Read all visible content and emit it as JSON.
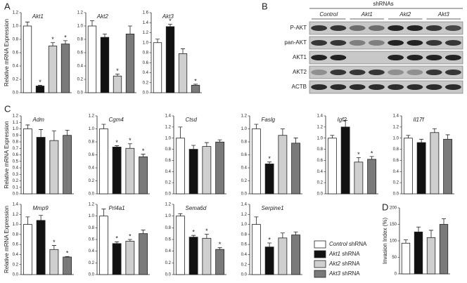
{
  "panels": [
    "A",
    "B",
    "C",
    "D"
  ],
  "blot": {
    "header": "shRNAs",
    "groups": [
      "Control",
      "Akt1",
      "Akt2",
      "Akt3"
    ],
    "rows": [
      "P-AKT",
      "pan-AKT",
      "AKT1",
      "AKT2",
      "ACTB"
    ]
  },
  "legend": [
    {
      "name": "Control shRNA",
      "color": "#ffffff"
    },
    {
      "name": "Akt1 shRNA",
      "color": "#111111"
    },
    {
      "name": "Akt2 shRNA",
      "color": "#cfcfcf"
    },
    {
      "name": "Akt3 shRNA",
      "color": "#7a7a7a"
    }
  ],
  "chart_data": [
    {
      "type": "bar",
      "title": "Akt1",
      "ylabel": "Relative mRNA Expression",
      "values": [
        1.0,
        0.1,
        0.7,
        0.73
      ],
      "errors": [
        0.06,
        0.01,
        0.05,
        0.05
      ],
      "annotations": [
        {
          "category_index": 1,
          "text": "*"
        },
        {
          "category_index": 2,
          "text": "*"
        },
        {
          "category_index": 3,
          "text": "*"
        }
      ],
      "ylim": [
        0,
        1.2
      ],
      "yticks": [
        {
          "value": 0,
          "label": "0.0"
        },
        {
          "value": 0.2,
          "label": "0.2"
        },
        {
          "value": 0.4,
          "label": "0.4"
        },
        {
          "value": 0.6,
          "label": "0.6"
        },
        {
          "value": 0.8,
          "label": "0.8"
        },
        {
          "value": 1.0,
          "label": "1.0"
        },
        {
          "value": 1.2,
          "label": "1.2"
        }
      ]
    },
    {
      "type": "bar",
      "title": "Akt2",
      "values": [
        1.0,
        0.83,
        0.25,
        0.88
      ],
      "errors": [
        0.08,
        0.05,
        0.03,
        0.12
      ],
      "annotations": [
        {
          "category_index": 2,
          "text": "*"
        }
      ],
      "ylim": [
        0,
        1.2
      ],
      "yticks": [
        {
          "value": 0,
          "label": "0.0"
        },
        {
          "value": 0.2,
          "label": "0.2"
        },
        {
          "value": 0.4,
          "label": "0.4"
        },
        {
          "value": 0.6,
          "label": "0.6"
        },
        {
          "value": 0.8,
          "label": "0.8"
        },
        {
          "value": 1.0,
          "label": "1.0"
        },
        {
          "value": 1.2,
          "label": "1.2"
        }
      ]
    },
    {
      "type": "bar",
      "title": "Akt3",
      "values": [
        1.0,
        1.32,
        0.78,
        0.15
      ],
      "errors": [
        0.07,
        0.05,
        0.1,
        0.02
      ],
      "annotations": [
        {
          "category_index": 1,
          "text": "*"
        },
        {
          "category_index": 3,
          "text": "*"
        }
      ],
      "ylim": [
        0,
        1.6
      ],
      "yticks": [
        {
          "value": 0,
          "label": "0.0"
        },
        {
          "value": 0.2,
          "label": "0.2"
        },
        {
          "value": 0.4,
          "label": "0.4"
        },
        {
          "value": 0.6,
          "label": "0.6"
        },
        {
          "value": 0.8,
          "label": "0.8"
        },
        {
          "value": 1.0,
          "label": "1.0"
        },
        {
          "value": 1.2,
          "label": "1.2"
        },
        {
          "value": 1.4,
          "label": "1.4"
        },
        {
          "value": 1.6,
          "label": "1.6"
        }
      ]
    },
    {
      "type": "bar",
      "title": "Adm",
      "ylabel": "Relative mRNA Expression",
      "values": [
        1.0,
        0.87,
        0.82,
        0.9
      ],
      "errors": [
        0.06,
        0.12,
        0.15,
        0.08
      ],
      "ylim": [
        0,
        1.2
      ],
      "yticks": [
        {
          "value": 0,
          "label": "0.0"
        },
        {
          "value": 0.1,
          "label": "0.1"
        },
        {
          "value": 0.2,
          "label": "0.2"
        },
        {
          "value": 0.3,
          "label": "0.3"
        },
        {
          "value": 0.4,
          "label": "0.4"
        },
        {
          "value": 0.5,
          "label": "0.5"
        },
        {
          "value": 0.6,
          "label": "0.6"
        },
        {
          "value": 0.7,
          "label": "0.7"
        },
        {
          "value": 0.8,
          "label": "0.8"
        },
        {
          "value": 0.9,
          "label": "0.9"
        },
        {
          "value": 1.0,
          "label": "1.0"
        },
        {
          "value": 1.1,
          "label": "1.1"
        },
        {
          "value": 1.2,
          "label": "1.2"
        }
      ]
    },
    {
      "type": "bar",
      "title": "Cgm4",
      "values": [
        1.0,
        0.72,
        0.7,
        0.57
      ],
      "errors": [
        0.07,
        0.02,
        0.07,
        0.04
      ],
      "annotations": [
        {
          "category_index": 1,
          "text": "*"
        },
        {
          "category_index": 2,
          "text": "*"
        },
        {
          "category_index": 3,
          "text": "*"
        }
      ],
      "ylim": [
        0,
        1.2
      ],
      "yticks": [
        {
          "value": 0,
          "label": "0.0"
        },
        {
          "value": 0.2,
          "label": "0.2"
        },
        {
          "value": 0.4,
          "label": "0.4"
        },
        {
          "value": 0.6,
          "label": "0.6"
        },
        {
          "value": 0.8,
          "label": "0.8"
        },
        {
          "value": 1.0,
          "label": "1.0"
        },
        {
          "value": 1.2,
          "label": "1.2"
        }
      ]
    },
    {
      "type": "bar",
      "title": "Ctsd",
      "values": [
        1.0,
        0.8,
        0.85,
        0.93
      ],
      "errors": [
        0.2,
        0.07,
        0.07,
        0.04
      ],
      "ylim": [
        0,
        1.4
      ],
      "yticks": [
        {
          "value": 0,
          "label": "0.0"
        },
        {
          "value": 0.2,
          "label": "0.2"
        },
        {
          "value": 0.4,
          "label": "0.4"
        },
        {
          "value": 0.6,
          "label": "0.6"
        },
        {
          "value": 0.8,
          "label": "0.8"
        },
        {
          "value": 1.0,
          "label": "1.0"
        },
        {
          "value": 1.2,
          "label": "1.2"
        },
        {
          "value": 1.4,
          "label": "1.4"
        }
      ]
    },
    {
      "type": "bar",
      "title": "Faslg",
      "values": [
        1.0,
        0.46,
        0.9,
        0.78
      ],
      "errors": [
        0.07,
        0.03,
        0.1,
        0.08
      ],
      "annotations": [
        {
          "category_index": 1,
          "text": "*"
        }
      ],
      "ylim": [
        0,
        1.2
      ],
      "yticks": [
        {
          "value": 0,
          "label": "0.0"
        },
        {
          "value": 0.2,
          "label": "0.2"
        },
        {
          "value": 0.4,
          "label": "0.4"
        },
        {
          "value": 0.6,
          "label": "0.6"
        },
        {
          "value": 0.8,
          "label": "0.8"
        },
        {
          "value": 1.0,
          "label": "1.0"
        },
        {
          "value": 1.2,
          "label": "1.2"
        }
      ]
    },
    {
      "type": "bar",
      "title": "Igf2",
      "values": [
        1.0,
        1.2,
        0.57,
        0.62
      ],
      "errors": [
        0.05,
        0.12,
        0.08,
        0.05
      ],
      "annotations": [
        {
          "category_index": 2,
          "text": "*"
        },
        {
          "category_index": 3,
          "text": "*"
        }
      ],
      "ylim": [
        0,
        1.4
      ],
      "yticks": [
        {
          "value": 0,
          "label": "0.0"
        },
        {
          "value": 0.2,
          "label": "0.2"
        },
        {
          "value": 0.4,
          "label": "0.4"
        },
        {
          "value": 0.6,
          "label": "0.6"
        },
        {
          "value": 0.8,
          "label": "0.8"
        },
        {
          "value": 1.0,
          "label": "1.0"
        },
        {
          "value": 1.2,
          "label": "1.2"
        },
        {
          "value": 1.4,
          "label": "1.4"
        }
      ]
    },
    {
      "type": "bar",
      "title": "Il17f",
      "values": [
        1.0,
        0.92,
        1.1,
        0.98
      ],
      "errors": [
        0.05,
        0.06,
        0.07,
        0.08
      ],
      "ylim": [
        0,
        1.4
      ],
      "yticks": [
        {
          "value": 0,
          "label": "0.0"
        },
        {
          "value": 0.2,
          "label": "0.2"
        },
        {
          "value": 0.4,
          "label": "0.4"
        },
        {
          "value": 0.6,
          "label": "0.6"
        },
        {
          "value": 0.8,
          "label": "0.8"
        },
        {
          "value": 1.0,
          "label": "1.0"
        },
        {
          "value": 1.2,
          "label": "1.2"
        },
        {
          "value": 1.4,
          "label": "1.4"
        }
      ]
    },
    {
      "type": "bar",
      "title": "Mmp9",
      "ylabel": "Relative mRNA Expression",
      "values": [
        1.0,
        1.08,
        0.5,
        0.35
      ],
      "errors": [
        0.15,
        0.1,
        0.08,
        0.01
      ],
      "annotations": [
        {
          "category_index": 2,
          "text": "*"
        },
        {
          "category_index": 3,
          "text": "*"
        }
      ],
      "ylim": [
        0,
        1.4
      ],
      "yticks": [
        {
          "value": 0,
          "label": "0.0"
        },
        {
          "value": 0.2,
          "label": "0.2"
        },
        {
          "value": 0.4,
          "label": "0.4"
        },
        {
          "value": 0.6,
          "label": "0.6"
        },
        {
          "value": 0.8,
          "label": "0.8"
        },
        {
          "value": 1.0,
          "label": "1.0"
        },
        {
          "value": 1.2,
          "label": "1.2"
        },
        {
          "value": 1.4,
          "label": "1.4"
        }
      ]
    },
    {
      "type": "bar",
      "title": "Prl4a1",
      "values": [
        1.0,
        0.53,
        0.57,
        0.7
      ],
      "errors": [
        0.12,
        0.03,
        0.03,
        0.06
      ],
      "annotations": [
        {
          "category_index": 1,
          "text": "*"
        },
        {
          "category_index": 2,
          "text": "*"
        }
      ],
      "ylim": [
        0,
        1.2
      ],
      "yticks": [
        {
          "value": 0,
          "label": "0.0"
        },
        {
          "value": 0.2,
          "label": "0.2"
        },
        {
          "value": 0.4,
          "label": "0.4"
        },
        {
          "value": 0.6,
          "label": "0.6"
        },
        {
          "value": 0.8,
          "label": "0.8"
        },
        {
          "value": 1.0,
          "label": "1.0"
        },
        {
          "value": 1.2,
          "label": "1.2"
        }
      ]
    },
    {
      "type": "bar",
      "title": "Sema6d",
      "values": [
        1.0,
        0.64,
        0.62,
        0.43
      ],
      "errors": [
        0.04,
        0.03,
        0.07,
        0.03
      ],
      "annotations": [
        {
          "category_index": 1,
          "text": "*"
        },
        {
          "category_index": 2,
          "text": "*"
        },
        {
          "category_index": 3,
          "text": "*"
        }
      ],
      "ylim": [
        0,
        1.2
      ],
      "yticks": [
        {
          "value": 0,
          "label": "0.0"
        },
        {
          "value": 0.2,
          "label": "0.2"
        },
        {
          "value": 0.4,
          "label": "0.4"
        },
        {
          "value": 0.6,
          "label": "0.6"
        },
        {
          "value": 0.8,
          "label": "0.8"
        },
        {
          "value": 1.0,
          "label": "1.0"
        },
        {
          "value": 1.2,
          "label": "1.2"
        }
      ]
    },
    {
      "type": "bar",
      "title": "Serpine1",
      "values": [
        1.0,
        0.55,
        0.73,
        0.79
      ],
      "errors": [
        0.15,
        0.08,
        0.1,
        0.06
      ],
      "annotations": [
        {
          "category_index": 1,
          "text": "*"
        }
      ],
      "ylim": [
        0,
        1.4
      ],
      "yticks": [
        {
          "value": 0,
          "label": "0.0"
        },
        {
          "value": 0.2,
          "label": "0.2"
        },
        {
          "value": 0.4,
          "label": "0.4"
        },
        {
          "value": 0.6,
          "label": "0.6"
        },
        {
          "value": 0.8,
          "label": "0.8"
        },
        {
          "value": 1.0,
          "label": "1.0"
        },
        {
          "value": 1.2,
          "label": "1.2"
        },
        {
          "value": 1.4,
          "label": "1.4"
        }
      ]
    },
    {
      "type": "bar",
      "ylabel": "Invasion Index (%)",
      "values": [
        93,
        127,
        110,
        150
      ],
      "errors": [
        10,
        15,
        22,
        17
      ],
      "ylim": [
        0,
        200
      ],
      "yticks": [
        0,
        50,
        100,
        150,
        200
      ]
    }
  ]
}
